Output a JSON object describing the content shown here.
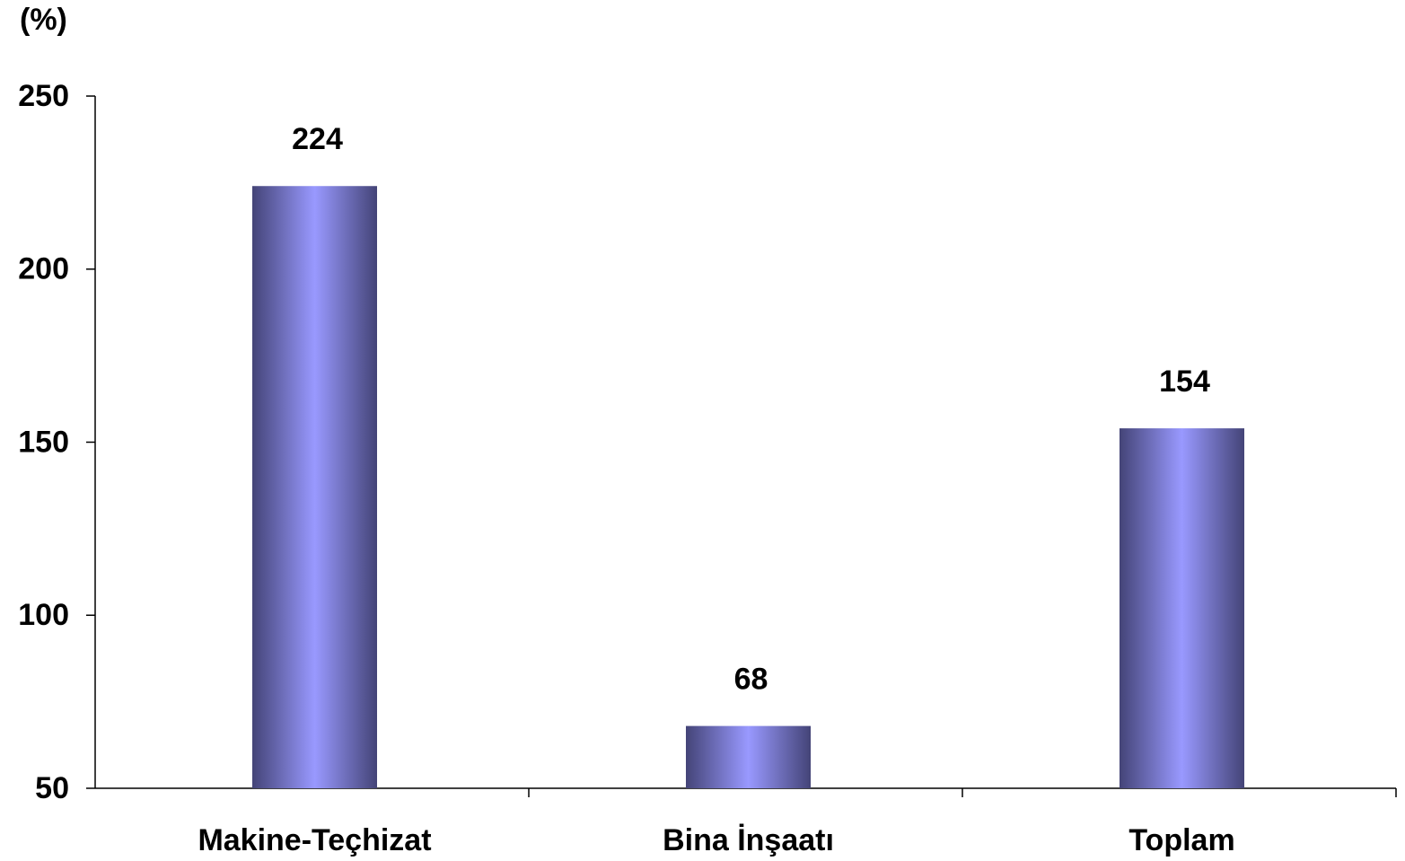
{
  "chart_data": {
    "type": "bar",
    "y_axis_label": "(%)",
    "categories": [
      "Makine-Teçhizat",
      "Bina İnşaatı",
      "Toplam"
    ],
    "values": [
      224,
      68,
      154
    ],
    "color": "#9999ff",
    "ylim": [
      50,
      250
    ],
    "yticks": [
      50,
      100,
      150,
      200,
      250
    ],
    "grid": false
  }
}
